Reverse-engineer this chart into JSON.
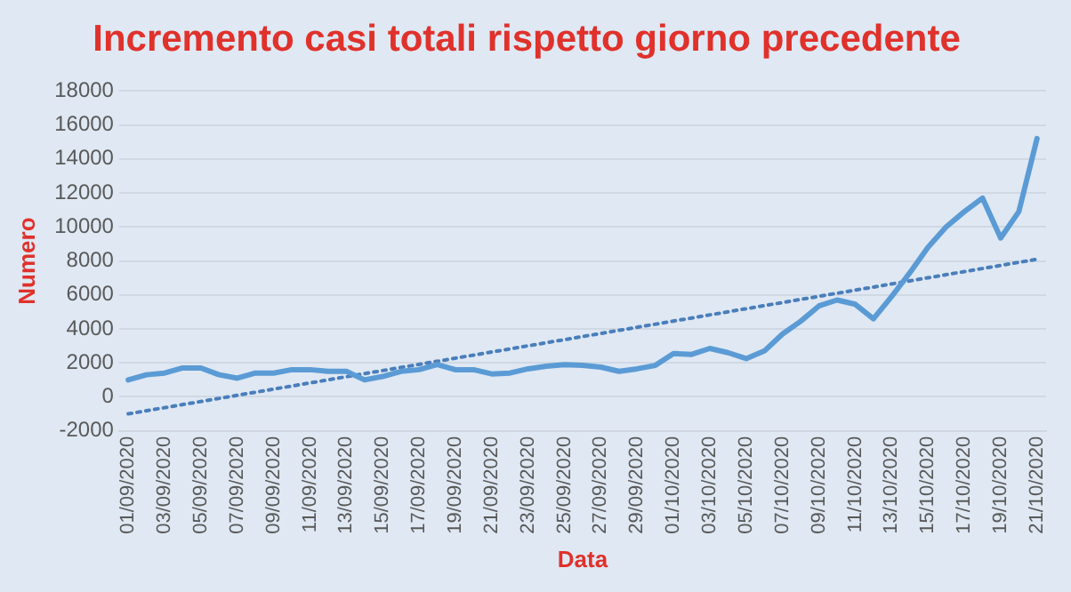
{
  "chart_data": {
    "type": "line",
    "title": "Incremento casi totali rispetto giorno precedente",
    "xlabel": "Data",
    "ylabel": "Numero",
    "categories": [
      "01/09/2020",
      null,
      "03/09/2020",
      null,
      "05/09/2020",
      null,
      "07/09/2020",
      null,
      "09/09/2020",
      null,
      "11/09/2020",
      null,
      "13/09/2020",
      null,
      "15/09/2020",
      null,
      "17/09/2020",
      null,
      "19/09/2020",
      null,
      "21/09/2020",
      null,
      "23/09/2020",
      null,
      "25/09/2020",
      null,
      "27/09/2020",
      null,
      "29/09/2020",
      null,
      "01/10/2020",
      null,
      "03/10/2020",
      null,
      "05/10/2020",
      null,
      "07/10/2020",
      null,
      "09/10/2020",
      null,
      "11/10/2020",
      null,
      "13/10/2020",
      null,
      "15/10/2020",
      null,
      "17/10/2020",
      null,
      "19/10/2020",
      null,
      "21/10/2020"
    ],
    "series": [
      {
        "color": "#5b9bd5",
        "values": [
          1000,
          1300,
          1400,
          1700,
          1700,
          1300,
          1100,
          1400,
          1400,
          1600,
          1600,
          1500,
          1500,
          1000,
          1200,
          1500,
          1600,
          1900,
          1600,
          1600,
          1350,
          1400,
          1650,
          1800,
          1900,
          1850,
          1750,
          1500,
          1650,
          1850,
          2550,
          2500,
          2850,
          2600,
          2250,
          2700,
          3700,
          4450,
          5350,
          5700,
          5450,
          4600,
          5900,
          7300,
          8800,
          10000,
          10900,
          11700,
          9350,
          10900,
          15200
        ]
      },
      {
        "type": "line",
        "color": "#4a7ebb",
        "line_style": "dotted",
        "marker": "none",
        "x": [
          "01/09/2020",
          "21/10/2020"
        ],
        "values": [
          -1000,
          8100
        ]
      }
    ],
    "ylim": [
      -2000,
      18000
    ],
    "yticks": [
      -2000,
      0,
      2000,
      4000,
      6000,
      8000,
      10000,
      12000,
      14000,
      16000,
      18000
    ],
    "grid": "y",
    "legend": false,
    "marker": "none",
    "line_style": "solid"
  }
}
